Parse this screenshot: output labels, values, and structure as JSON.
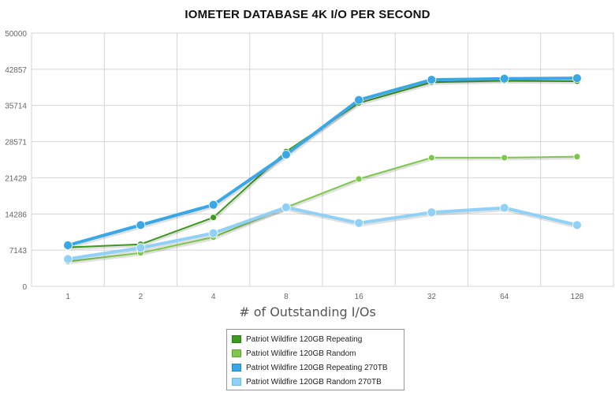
{
  "chart_data": {
    "type": "line",
    "title": "IOMETER DATABASE 4K I/O PER SECOND",
    "xlabel": "# of Outstanding I/Os",
    "ylabel": "",
    "categories": [
      "1",
      "2",
      "4",
      "8",
      "16",
      "32",
      "64",
      "128"
    ],
    "yticks": [
      "0",
      "7143",
      "14286",
      "21429",
      "28571",
      "35714",
      "42857",
      "50000"
    ],
    "ylim": [
      0,
      50000
    ],
    "grid": true,
    "legend_position": "bottom-center",
    "series": [
      {
        "name": "Patriot Wildfire 120GB Repeating",
        "color": "#3d9a1e",
        "values": [
          7700,
          8300,
          13600,
          26600,
          36200,
          40300,
          40600,
          40500
        ]
      },
      {
        "name": "Patriot Wildfire 120GB Random",
        "color": "#7dc84a",
        "values": [
          4900,
          6600,
          9700,
          15600,
          21200,
          25400,
          25400,
          25600
        ]
      },
      {
        "name": "Patriot Wildfire 120GB Repeating 270TB",
        "color": "#3aa7e6",
        "values": [
          8100,
          12100,
          16100,
          26000,
          36800,
          40800,
          41000,
          41100
        ]
      },
      {
        "name": "Patriot Wildfire 120GB Random 270TB",
        "color": "#8fd1f7",
        "values": [
          5400,
          7600,
          10500,
          15600,
          12500,
          14600,
          15500,
          12100
        ]
      }
    ]
  }
}
